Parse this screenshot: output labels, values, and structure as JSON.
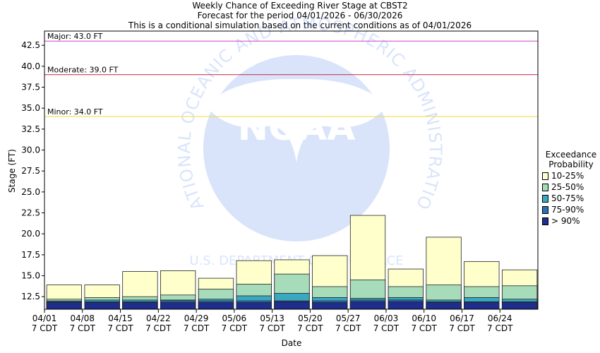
{
  "title_lines": [
    "Weekly Chance of Exceeding River Stage at CBST2",
    "Forecast for the period 04/01/2026 - 06/30/2026",
    "This is a conditional simulation based on the current conditions as of 04/01/2026"
  ],
  "chart_data": {
    "type": "bar",
    "title": "Weekly Chance of Exceeding River Stage at CBST2",
    "ylabel": "Stage (FT)",
    "xlabel": "Date",
    "ylim": [
      11.0,
      44.2
    ],
    "yticks": [
      "12.5",
      "15.0",
      "17.5",
      "20.0",
      "22.5",
      "25.0",
      "27.5",
      "30.0",
      "32.5",
      "35.0",
      "37.5",
      "40.0",
      "42.5"
    ],
    "categories": [
      "04/01",
      "04/08",
      "04/15",
      "04/22",
      "04/29",
      "05/06",
      "05/13",
      "05/20",
      "05/27",
      "06/03",
      "06/10",
      "06/17",
      "06/24"
    ],
    "category_sublabel": "7 CDT",
    "series": [
      {
        "name": "> 90%",
        "color": "#1f2d8c",
        "values": [
          11.8,
          11.8,
          11.8,
          11.8,
          11.8,
          11.8,
          11.9,
          11.8,
          11.9,
          11.9,
          11.8,
          11.8,
          11.8
        ]
      },
      {
        "name": "75-90%",
        "color": "#2c6fb5",
        "values": [
          11.9,
          11.9,
          11.9,
          12.0,
          12.0,
          12.0,
          12.0,
          12.0,
          12.1,
          12.1,
          11.9,
          11.9,
          11.9
        ]
      },
      {
        "name": "50-75%",
        "color": "#3aa8c0",
        "values": [
          12.0,
          12.1,
          12.1,
          12.1,
          12.2,
          12.6,
          12.9,
          12.4,
          12.3,
          12.4,
          12.1,
          12.4,
          12.2
        ]
      },
      {
        "name": "25-50%",
        "color": "#a6dcba",
        "values": [
          12.2,
          12.4,
          12.5,
          12.7,
          13.4,
          14.0,
          15.2,
          13.7,
          14.5,
          13.7,
          13.9,
          13.7,
          13.8
        ]
      },
      {
        "name": "10-25%",
        "color": "#ffffcc",
        "values": [
          13.9,
          13.9,
          15.5,
          15.6,
          14.7,
          16.8,
          16.9,
          17.4,
          22.2,
          15.8,
          19.6,
          16.7,
          15.7
        ]
      }
    ],
    "flood_levels": [
      {
        "label": "Major: 43.0 FT",
        "value": 43.0,
        "color": "#cc44cc"
      },
      {
        "label": "Moderate: 39.0 FT",
        "value": 39.0,
        "color": "#cc2244"
      },
      {
        "label": "Minor: 34.0 FT",
        "value": 34.0,
        "color": "#eedd33"
      }
    ],
    "legend": {
      "title_lines": [
        "Exceedance",
        "Probability"
      ],
      "items": [
        "10-25%",
        "25-50%",
        "50-75%",
        "75-90%",
        "> 90%"
      ],
      "placement": "right"
    },
    "watermark": {
      "logo_text": "NOAA",
      "ring_text": "NATIONAL OCEANIC AND ATMOSPHERIC ADMINISTRATION",
      "bottom_text": "U.S. DEPARTMENT OF COMMERCE"
    }
  }
}
